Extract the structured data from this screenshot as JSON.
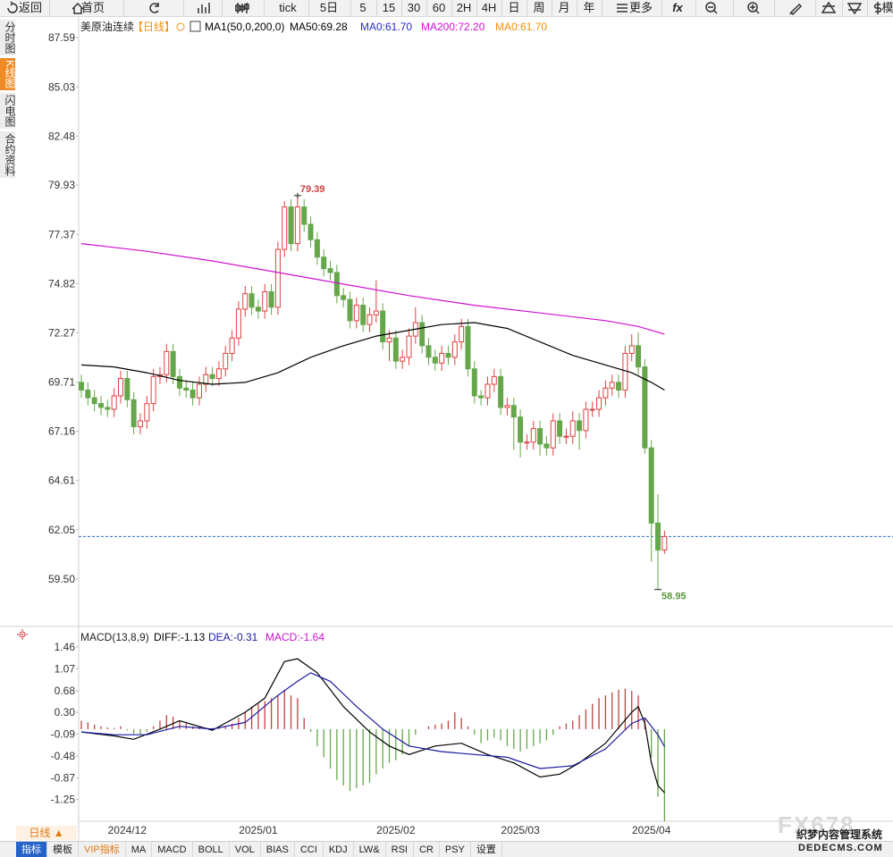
{
  "toolbar": [
    "返回",
    "首页",
    "tick",
    "5日",
    "5",
    "15",
    "30",
    "60",
    "2H",
    "4H",
    "日",
    "周",
    "月",
    "年",
    "更多",
    "fx",
    "模"
  ],
  "sidebar": [
    "分时图",
    "K线图",
    "闪电图",
    "合约资料"
  ],
  "chart_data": [
    {
      "type": "candlestick",
      "title": "美原油连续",
      "period": "【日线】",
      "legend": [
        {
          "label": "MA1(50,0,200,0)",
          "color": "#000000"
        },
        {
          "label": "MA0:61.70",
          "color": "#2a2ad0"
        },
        {
          "label": "MA0:61.70",
          "color": "#f0900a"
        }
      ],
      "categories": [
        null,
        null,
        null,
        null,
        null,
        null,
        null,
        "2024/12",
        null,
        null,
        null,
        null,
        null,
        null,
        null,
        null,
        null,
        null,
        null,
        null,
        null,
        null,
        null,
        null,
        null,
        null,
        null,
        "2025/01",
        null,
        null,
        null,
        null,
        null,
        null,
        null,
        null,
        null,
        null,
        null,
        null,
        null,
        null,
        null,
        null,
        null,
        null,
        null,
        null,
        "2025/02",
        null,
        null,
        null,
        null,
        null,
        null,
        null,
        null,
        null,
        null,
        null,
        null,
        null,
        null,
        null,
        null,
        null,
        null,
        "2025/03",
        null,
        null,
        null,
        null,
        null,
        null,
        null,
        null,
        null,
        null,
        null,
        null,
        null,
        null,
        null,
        null,
        null,
        null,
        null,
        "2025/04",
        null,
        null
      ],
      "open": [
        69.7,
        69.3,
        68.9,
        68.6,
        68.4,
        68.3,
        69.0,
        69.9,
        68.8,
        67.4,
        67.7,
        68.6,
        70.0,
        70.1,
        71.3,
        70.0,
        69.4,
        69.3,
        68.9,
        69.6,
        70.1,
        69.9,
        70.4,
        71.2,
        72.0,
        73.5,
        74.3,
        73.6,
        73.4,
        74.4,
        73.6,
        76.6,
        78.8,
        76.9,
        78.8,
        77.9,
        77.1,
        76.2,
        75.6,
        75.4,
        74.2,
        74.0,
        72.9,
        73.7,
        72.7,
        73.2,
        73.4,
        71.8,
        72.0,
        70.8,
        71.0,
        72.1,
        72.8,
        71.6,
        71.0,
        70.7,
        71.2,
        71.0,
        71.8,
        72.6,
        70.4,
        69.0,
        68.9,
        69.6,
        70.0,
        68.4,
        68.5,
        67.9,
        66.6,
        66.6,
        67.3,
        66.5,
        66.3,
        67.7,
        66.9,
        66.9,
        67.7,
        67.2,
        68.3,
        68.3,
        68.9,
        69.4,
        69.7,
        69.3,
        71.2,
        71.6,
        70.5,
        66.3,
        62.4,
        61.0
      ],
      "high": [
        70.1,
        69.7,
        69.3,
        69.0,
        68.8,
        69.4,
        70.3,
        70.3,
        69.2,
        68.1,
        69.0,
        70.4,
        70.5,
        71.7,
        71.7,
        70.4,
        69.8,
        69.7,
        70.0,
        70.5,
        70.5,
        70.8,
        71.6,
        72.4,
        73.9,
        74.7,
        74.7,
        74.0,
        74.8,
        74.8,
        77.0,
        79.1,
        79.2,
        79.39,
        79.2,
        78.3,
        77.5,
        76.6,
        76.0,
        75.8,
        74.6,
        74.4,
        74.1,
        74.1,
        73.6,
        75.0,
        73.8,
        72.4,
        72.4,
        71.4,
        72.5,
        73.6,
        73.2,
        72.0,
        71.4,
        71.6,
        71.6,
        72.2,
        73.0,
        73.0,
        70.8,
        69.3,
        70.0,
        70.4,
        70.4,
        68.9,
        68.9,
        68.3,
        67.0,
        67.7,
        67.7,
        66.9,
        68.1,
        68.1,
        67.3,
        68.2,
        68.1,
        68.7,
        68.7,
        69.3,
        69.8,
        70.1,
        70.1,
        71.6,
        72.2,
        72.3,
        70.9,
        66.7,
        63.9,
        62.0
      ],
      "low": [
        68.9,
        68.5,
        68.2,
        68.0,
        67.9,
        67.9,
        68.6,
        68.4,
        67.0,
        67.0,
        67.3,
        68.2,
        69.6,
        69.7,
        69.6,
        69.0,
        68.9,
        68.5,
        68.5,
        69.2,
        69.5,
        69.5,
        70.0,
        70.8,
        71.6,
        73.1,
        73.2,
        73.0,
        73.0,
        73.2,
        73.2,
        76.2,
        76.5,
        76.5,
        77.5,
        76.7,
        75.8,
        75.2,
        75.0,
        73.8,
        73.6,
        72.5,
        72.5,
        72.3,
        72.3,
        72.8,
        71.4,
        70.8,
        70.4,
        70.4,
        70.6,
        71.7,
        71.2,
        70.6,
        70.3,
        70.3,
        70.6,
        70.6,
        71.4,
        70.0,
        68.6,
        68.5,
        68.5,
        69.2,
        68.0,
        68.0,
        66.2,
        65.8,
        66.2,
        66.2,
        65.9,
        65.9,
        65.9,
        66.5,
        66.5,
        66.5,
        66.2,
        66.8,
        67.9,
        67.9,
        68.5,
        69.0,
        68.9,
        68.9,
        70.8,
        70.1,
        66.0,
        60.4,
        58.95,
        60.8
      ],
      "close": [
        69.3,
        68.9,
        68.6,
        68.4,
        68.3,
        69.0,
        69.9,
        68.8,
        67.4,
        67.7,
        68.6,
        70.0,
        70.1,
        71.3,
        70.0,
        69.4,
        69.3,
        68.9,
        69.6,
        70.1,
        69.9,
        70.4,
        71.2,
        72.0,
        73.5,
        74.3,
        73.6,
        73.4,
        74.4,
        73.6,
        76.6,
        78.8,
        76.9,
        78.8,
        77.9,
        77.1,
        76.2,
        75.6,
        75.4,
        74.2,
        74.0,
        72.9,
        73.7,
        72.7,
        73.2,
        73.4,
        71.8,
        72.0,
        70.8,
        71.0,
        72.1,
        72.8,
        71.6,
        71.0,
        70.7,
        71.2,
        71.0,
        71.8,
        72.6,
        70.4,
        69.0,
        68.9,
        69.6,
        70.0,
        68.4,
        68.5,
        67.9,
        66.6,
        66.6,
        67.3,
        66.5,
        66.3,
        67.7,
        66.9,
        66.9,
        67.7,
        67.2,
        68.3,
        68.3,
        68.9,
        69.4,
        69.7,
        69.3,
        71.2,
        71.6,
        70.5,
        66.3,
        62.4,
        61.0,
        61.7
      ],
      "up_color": "#e04040",
      "down_color": "#65a74a",
      "series": [
        {
          "name": "MA50:69.28",
          "color": "#000000",
          "x": [
            0,
            5,
            10,
            15,
            20,
            25,
            30,
            35,
            40,
            45,
            50,
            55,
            60,
            65,
            70,
            75,
            80,
            84,
            87,
            89
          ],
          "values": [
            70.6,
            70.5,
            70.2,
            69.8,
            69.6,
            69.7,
            70.2,
            71.0,
            71.6,
            72.1,
            72.4,
            72.7,
            72.8,
            72.5,
            71.8,
            71.1,
            70.6,
            70.2,
            69.7,
            69.3
          ]
        },
        {
          "name": "MA200:72.20",
          "color": "#d010d0",
          "x": [
            0,
            10,
            20,
            30,
            40,
            50,
            60,
            70,
            80,
            85,
            89
          ],
          "values": [
            76.9,
            76.5,
            76.0,
            75.4,
            74.8,
            74.2,
            73.7,
            73.3,
            72.9,
            72.6,
            72.2
          ]
        }
      ],
      "price_line": 61.7,
      "price_line_color": "#2a6fd0",
      "ylim": [
        57.08,
        88.52
      ],
      "yticks": [
        87.59,
        85.03,
        82.48,
        79.93,
        77.37,
        74.82,
        72.27,
        69.71,
        67.16,
        64.61,
        62.05,
        {
          "value": 59.5,
          "label": "59.50"
        }
      ]
    },
    {
      "type": "macd",
      "title": "MACD(13,8,9)",
      "values": [
        0.15,
        0.12,
        0.08,
        0.05,
        0.03,
        0.02,
        0.05,
        -0.02,
        -0.08,
        -0.1,
        -0.05,
        0.05,
        0.15,
        0.25,
        0.22,
        0.15,
        0.1,
        0.05,
        0.04,
        0.03,
        0.02,
        0.03,
        0.05,
        0.1,
        0.2,
        0.3,
        0.4,
        0.45,
        0.5,
        0.55,
        0.6,
        0.7,
        0.6,
        0.55,
        0.2,
        -0.05,
        -0.3,
        -0.5,
        -0.7,
        -0.9,
        -1.0,
        -1.1,
        -1.05,
        -1.0,
        -0.95,
        -0.8,
        -0.7,
        -0.6,
        -0.55,
        -0.45,
        -0.3,
        -0.1,
        0.0,
        0.05,
        0.08,
        0.1,
        0.15,
        0.3,
        0.2,
        0.05,
        -0.1,
        -0.25,
        -0.2,
        -0.15,
        -0.2,
        -0.3,
        -0.35,
        -0.4,
        -0.35,
        -0.3,
        -0.25,
        -0.2,
        -0.1,
        0.05,
        0.1,
        0.15,
        0.25,
        0.35,
        0.45,
        0.55,
        0.6,
        0.65,
        0.7,
        0.72,
        0.68,
        0.6,
        0.2,
        -0.5,
        -1.2,
        -1.64
      ],
      "histogram_name": "MACD:-1.64",
      "histogram_color": "#d010d0",
      "up_color": "#c04040",
      "down_color": "#65a74a",
      "series": [
        {
          "name": "DIFF:-1.13",
          "color": "#000000",
          "x": [
            0,
            5,
            8,
            12,
            15,
            20,
            25,
            28,
            31,
            33,
            36,
            40,
            44,
            47,
            50,
            54,
            58,
            62,
            66,
            70,
            73,
            76,
            80,
            84,
            85,
            86,
            87,
            88,
            89
          ],
          "values": [
            -0.05,
            -0.12,
            -0.18,
            0.0,
            0.15,
            -0.02,
            0.3,
            0.55,
            1.2,
            1.25,
            1.0,
            0.4,
            -0.05,
            -0.3,
            -0.45,
            -0.3,
            -0.25,
            -0.45,
            -0.6,
            -0.85,
            -0.8,
            -0.6,
            -0.25,
            0.3,
            0.4,
            0.1,
            -0.6,
            -1.0,
            -1.13
          ]
        },
        {
          "name": "DEA:-0.31",
          "color": "#1a1aa0",
          "x": [
            0,
            5,
            10,
            15,
            20,
            25,
            30,
            33,
            35,
            38,
            42,
            46,
            50,
            55,
            60,
            65,
            70,
            75,
            80,
            84,
            86,
            88,
            89
          ],
          "values": [
            -0.05,
            -0.1,
            -0.1,
            0.05,
            0.0,
            0.12,
            0.6,
            0.85,
            1.0,
            0.85,
            0.4,
            0.0,
            -0.3,
            -0.4,
            -0.45,
            -0.5,
            -0.7,
            -0.65,
            -0.35,
            0.1,
            0.2,
            -0.1,
            -0.31
          ]
        }
      ],
      "ylim": [
        -1.7,
        1.65
      ],
      "yticks": [
        1.46,
        1.07,
        0.68,
        {
          "value": 0.3,
          "label": "0.30"
        },
        -0.09,
        -0.48,
        -0.87,
        -1.25
      ]
    }
  ],
  "footer": {
    "period": "日线 ▲",
    "tabs": [
      "指标",
      "模板",
      "VIP指标",
      "MA",
      "MACD",
      "BOLL",
      "VOL",
      "BIAS",
      "CCI",
      "KDJ",
      "LW&",
      "RSI",
      "CR",
      "PSY",
      "设置"
    ],
    "watermark": [
      "FX678",
      "织梦内容管理系统",
      "DEDECMS.COM"
    ]
  }
}
